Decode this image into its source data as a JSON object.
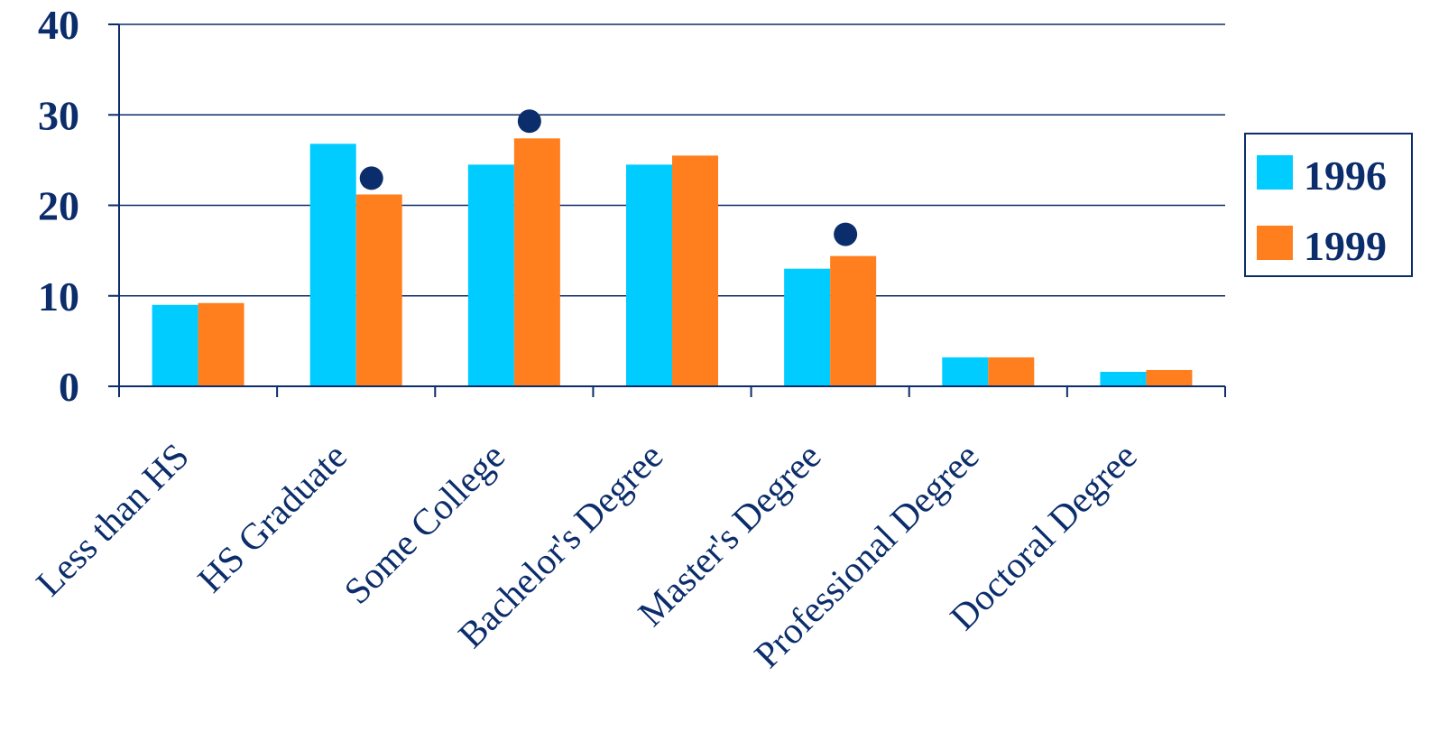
{
  "chart_data": {
    "type": "bar",
    "categories": [
      "Less than HS",
      "HS Graduate",
      "Some College",
      "Bachelor's Degree",
      "Master's Degree",
      "Professional Degree",
      "Doctoral Degree"
    ],
    "series": [
      {
        "name": "1996",
        "values": [
          9.0,
          26.8,
          24.5,
          24.5,
          13.0,
          3.2,
          1.6
        ]
      },
      {
        "name": "1999",
        "values": [
          9.2,
          21.2,
          27.4,
          25.5,
          14.4,
          3.2,
          1.8
        ]
      }
    ],
    "markers": [
      {
        "category": "HS Graduate",
        "value": 23.0
      },
      {
        "category": "Some College",
        "value": 29.3
      },
      {
        "category": "Master's Degree",
        "value": 16.8
      }
    ],
    "y_ticks": [
      "0",
      "10",
      "20",
      "30",
      "40"
    ],
    "ylim": [
      0,
      40
    ],
    "grid": true,
    "legend_position": "right",
    "title": "",
    "xlabel": "",
    "ylabel": ""
  },
  "colors": {
    "series_1996": "#00ccff",
    "series_1999": "#ff7f1e",
    "axis": "#0b2d6b",
    "marker": "#0b2d6b"
  }
}
